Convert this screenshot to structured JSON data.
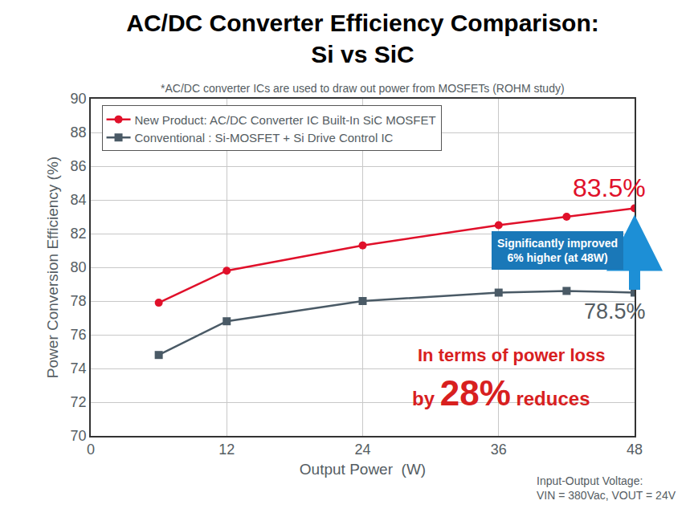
{
  "chart_data": {
    "type": "line",
    "title": "AC/DC Converter Efficiency Comparison: Si vs SiC",
    "subtitle": "*AC/DC converter ICs are used to draw out power from MOSFETs (ROHM study)",
    "x_label": "Output Power  (W)",
    "y_label": "Power Conversion Efficiency (%)",
    "x": [
      6,
      12,
      24,
      36,
      42,
      48
    ],
    "series": [
      {
        "name": "New Product: AC/DC Converter IC Built-In SiC MOSFET",
        "color": "#e0102a",
        "marker": "circle",
        "line_style": "solid",
        "values": [
          77.9,
          79.8,
          81.3,
          82.5,
          83.0,
          83.5
        ]
      },
      {
        "name": "Conventional : Si-MOSFET + Si Drive Control IC",
        "color": "#4a5a66",
        "marker": "square",
        "line_style": "solid",
        "values": [
          74.8,
          76.8,
          78.0,
          78.5,
          78.6,
          78.5
        ]
      }
    ],
    "xlim": [
      0,
      48
    ],
    "xticks": [
      0,
      12,
      24,
      36,
      48
    ],
    "ylim": [
      70,
      90
    ],
    "yticks": [
      70,
      72,
      74,
      76,
      78,
      80,
      82,
      84,
      86,
      88,
      90
    ],
    "grid": true,
    "legend": "upper left",
    "annotations": [
      {
        "text": "83.5%"
      },
      {
        "text": "78.5%"
      },
      {
        "text": "Significantly improved"
      },
      {
        "text": "6% higher (at 48W)"
      },
      {
        "text": "In terms of power loss"
      },
      {
        "text": "by 28% reduces"
      },
      {
        "text": "Input-Output Voltage:"
      },
      {
        "text": "VIN = 380Vac, VOUT = 24V"
      }
    ]
  }
}
